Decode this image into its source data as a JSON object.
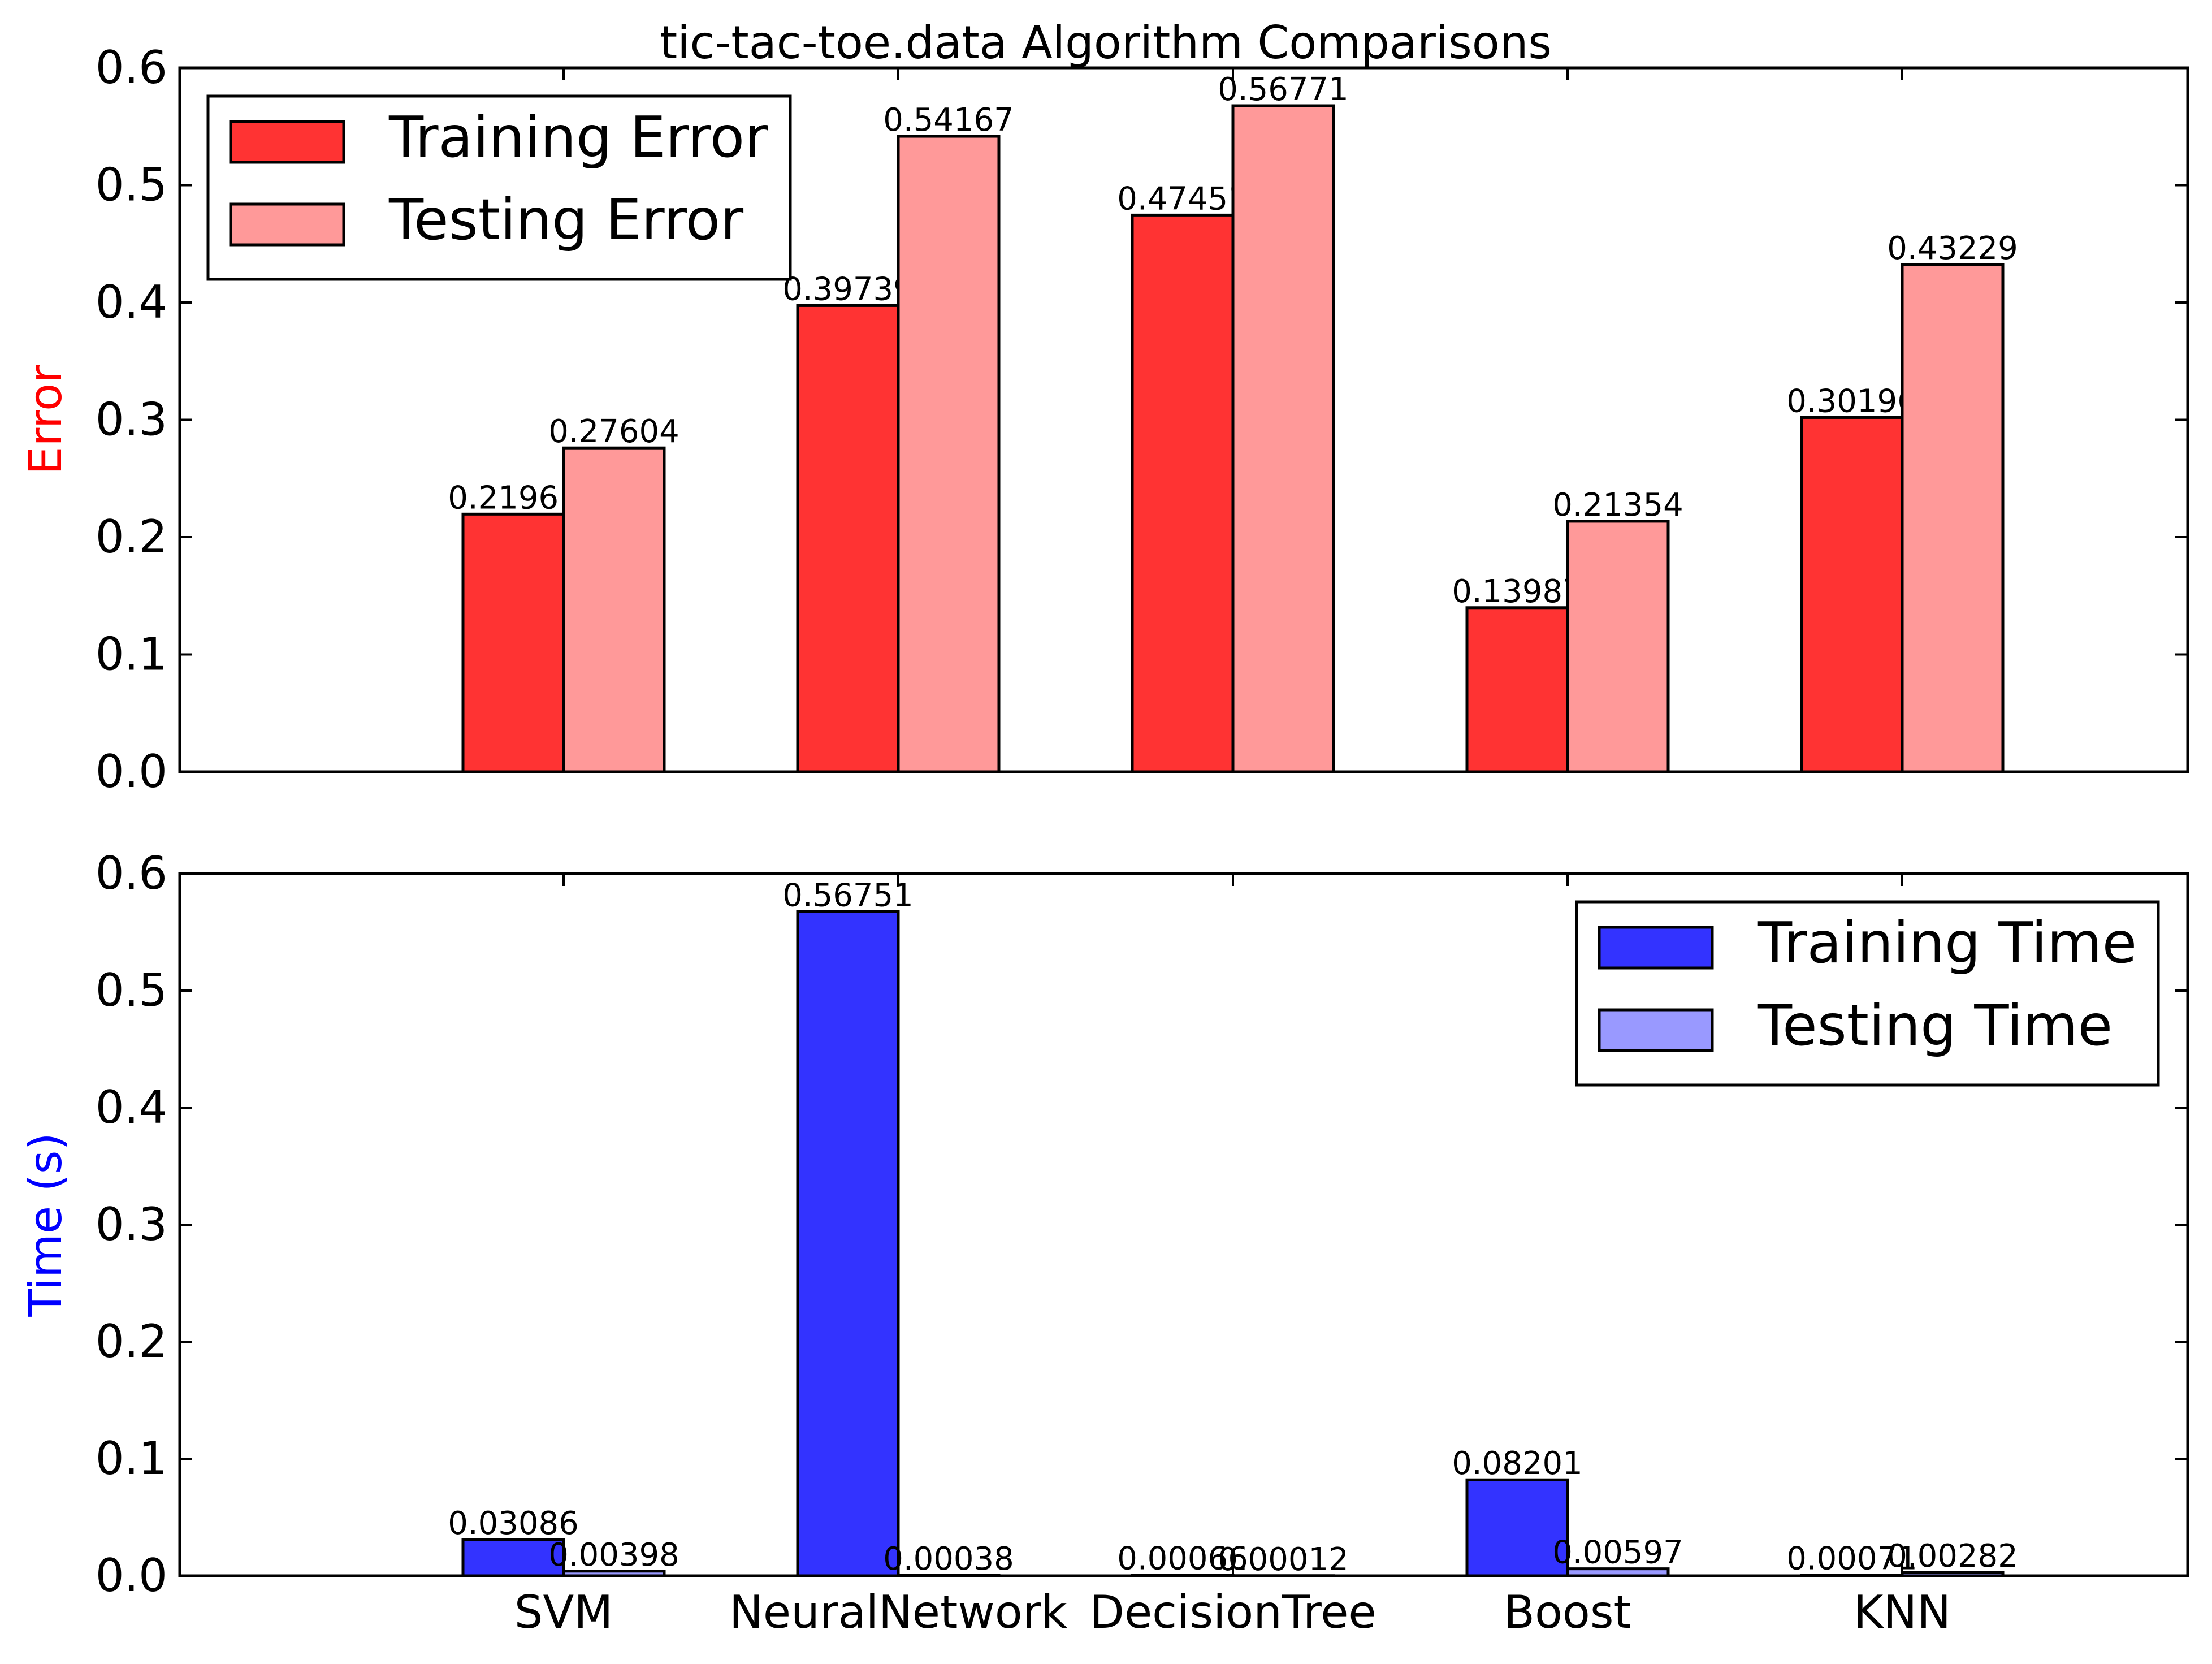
{
  "chart_data": [
    {
      "type": "bar",
      "title": "tic-tac-toe.data Algorithm Comparisons",
      "ylabel": "Error",
      "ylabel_color": "#ff0000",
      "ylim": [
        0,
        0.6
      ],
      "yticks": [
        "0.0",
        "0.1",
        "0.2",
        "0.3",
        "0.4",
        "0.5",
        "0.6"
      ],
      "categories": [
        "SVM",
        "NeuralNetwork",
        "DecisionTree",
        "Boost",
        "KNN"
      ],
      "legend_position": "top-left",
      "series": [
        {
          "name": "Training Error",
          "color": "#ff3333",
          "values": [
            0.21961,
            0.39739,
            0.47451,
            0.13987,
            0.30196
          ],
          "labels": [
            "0.21961",
            "0.39739",
            "0.47451",
            "0.13987",
            "0.30196"
          ]
        },
        {
          "name": "Testing Error",
          "color": "#ff9999",
          "values": [
            0.27604,
            0.54167,
            0.56771,
            0.21354,
            0.43229
          ],
          "labels": [
            "0.27604",
            "0.54167",
            "0.56771",
            "0.21354",
            "0.43229"
          ]
        }
      ]
    },
    {
      "type": "bar",
      "ylabel": "Time (s)",
      "ylabel_color": "#0000ff",
      "ylim": [
        0,
        0.6
      ],
      "yticks": [
        "0.0",
        "0.1",
        "0.2",
        "0.3",
        "0.4",
        "0.5",
        "0.6"
      ],
      "categories": [
        "SVM",
        "NeuralNetwork",
        "DecisionTree",
        "Boost",
        "KNN"
      ],
      "legend_position": "top-right",
      "series": [
        {
          "name": "Training Time",
          "color": "#3333ff",
          "values": [
            0.03086,
            0.56751,
            0.00066,
            0.08201,
            0.00071
          ],
          "labels": [
            "0.03086",
            "0.56751",
            "0.00066",
            "0.08201",
            "0.00071"
          ]
        },
        {
          "name": "Testing Time",
          "color": "#9999ff",
          "values": [
            0.00398,
            0.00038,
            0.00012,
            0.00597,
            0.00282
          ],
          "labels": [
            "0.00398",
            "0.00038",
            "0.00012",
            "0.00597",
            "0.00282"
          ]
        }
      ]
    }
  ]
}
